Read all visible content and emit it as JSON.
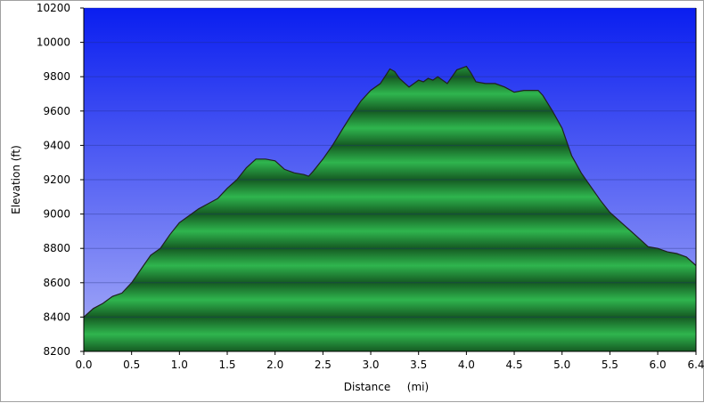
{
  "chart_data": {
    "type": "area",
    "xlabel": "Distance",
    "xunit": "(mi)",
    "ylabel": "Elevation (ft)",
    "xlim": [
      0,
      6.4
    ],
    "ylim": [
      8200,
      10200
    ],
    "x_ticks": [
      0.0,
      0.5,
      1.0,
      1.5,
      2.0,
      2.5,
      3.0,
      3.5,
      4.0,
      4.5,
      5.0,
      5.5,
      6.0,
      6.4
    ],
    "x_tick_labels": [
      "0.0",
      "0.5",
      "1.0",
      "1.5",
      "2.0",
      "2.5",
      "3.0",
      "3.5",
      "4.0",
      "4.5",
      "5.0",
      "5.5",
      "6.0",
      "6.4"
    ],
    "y_ticks": [
      8200,
      8400,
      8600,
      8800,
      9000,
      9200,
      9400,
      9600,
      9800,
      10000,
      10200
    ],
    "y_tick_labels": [
      "8200",
      "8400",
      "8600",
      "8800",
      "9000",
      "9200",
      "9400",
      "9600",
      "9800",
      "10000",
      "10200"
    ],
    "grid": true,
    "colors": {
      "sky_top": "#0a1ef0",
      "sky_bottom": "#a9aef7",
      "fill_dark": "#155a22",
      "fill_light": "#2fb54e",
      "outline": "#202020"
    },
    "series": [
      {
        "x": [
          0.0,
          0.1,
          0.2,
          0.3,
          0.4,
          0.5,
          0.6,
          0.7,
          0.8,
          0.9,
          1.0,
          1.1,
          1.2,
          1.3,
          1.4,
          1.5,
          1.6,
          1.7,
          1.8,
          1.9,
          2.0,
          2.1,
          2.2,
          2.3,
          2.35,
          2.4,
          2.5,
          2.6,
          2.7,
          2.8,
          2.9,
          3.0,
          3.1,
          3.2,
          3.25,
          3.3,
          3.4,
          3.5,
          3.55,
          3.6,
          3.65,
          3.7,
          3.8,
          3.9,
          4.0,
          4.05,
          4.1,
          4.2,
          4.3,
          4.4,
          4.5,
          4.6,
          4.7,
          4.75,
          4.8,
          4.9,
          5.0,
          5.1,
          5.2,
          5.3,
          5.4,
          5.5,
          5.6,
          5.7,
          5.8,
          5.9,
          6.0,
          6.1,
          6.2,
          6.3,
          6.4
        ],
        "y": [
          8400,
          8450,
          8480,
          8520,
          8540,
          8600,
          8680,
          8760,
          8800,
          8880,
          8950,
          8990,
          9030,
          9060,
          9090,
          9150,
          9200,
          9270,
          9320,
          9320,
          9310,
          9260,
          9240,
          9230,
          9220,
          9250,
          9320,
          9400,
          9490,
          9580,
          9660,
          9720,
          9760,
          9845,
          9830,
          9790,
          9740,
          9780,
          9770,
          9790,
          9780,
          9800,
          9760,
          9840,
          9860,
          9820,
          9770,
          9760,
          9760,
          9740,
          9710,
          9720,
          9720,
          9720,
          9690,
          9600,
          9500,
          9340,
          9240,
          9160,
          9080,
          9010,
          8960,
          8910,
          8860,
          8810,
          8800,
          8780,
          8770,
          8750,
          8700
        ]
      }
    ]
  }
}
